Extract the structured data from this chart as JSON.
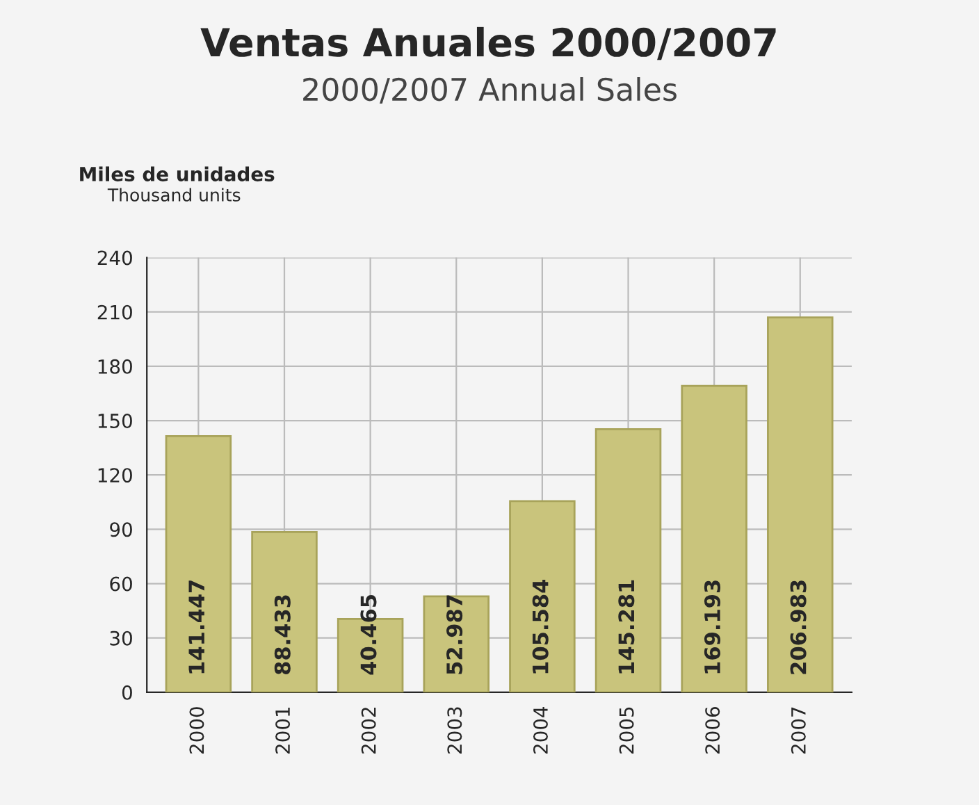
{
  "chart_data": {
    "type": "bar",
    "title": "Ventas Anuales 2000/2007",
    "subtitle": "2000/2007 Annual Sales",
    "ylabel": "Miles de unidades",
    "annotations": [
      "Thousand units"
    ],
    "categories": [
      "2000",
      "2001",
      "2002",
      "2003",
      "2004",
      "2005",
      "2006",
      "2007"
    ],
    "values": [
      141.447,
      88.433,
      40.465,
      52.987,
      105.584,
      145.281,
      169.193,
      206.983
    ],
    "color": "#c9c47c",
    "ylim": [
      0,
      240
    ],
    "yticks": [
      0,
      30,
      60,
      90,
      120,
      150,
      180,
      210,
      240
    ],
    "grid": true,
    "data_labels": true
  }
}
